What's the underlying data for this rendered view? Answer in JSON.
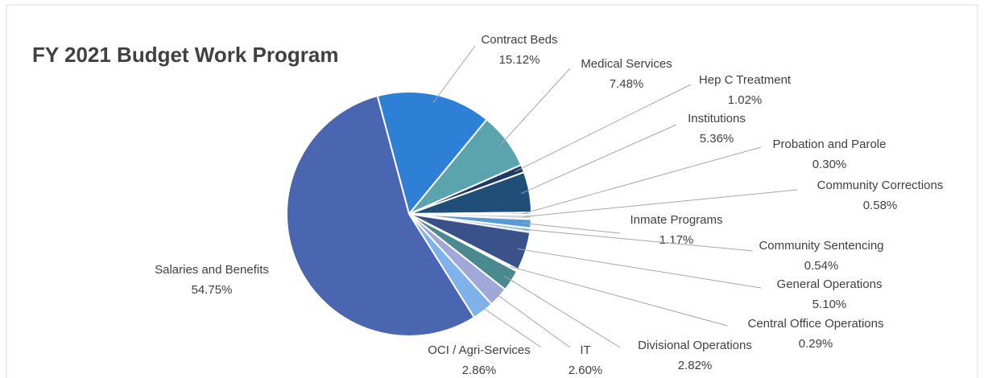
{
  "chart_data": {
    "type": "pie",
    "title": "FY 2021 Budget Work Program",
    "categories": [
      "Contract Beds",
      "Medical Services",
      "Hep C Treatment",
      "Institutions",
      "Probation and Parole",
      "Community Corrections",
      "Inmate Programs",
      "Community Sentencing",
      "General Operations",
      "Central Office Operations",
      "Divisional Operations",
      "IT",
      "OCI / Agri-Services",
      "Salaries and Benefits"
    ],
    "values": [
      15.12,
      7.48,
      1.02,
      5.36,
      0.3,
      0.58,
      1.17,
      0.54,
      5.1,
      0.29,
      2.82,
      2.6,
      2.86,
      54.75
    ],
    "value_labels": [
      "15.12%",
      "7.48%",
      "1.02%",
      "5.36%",
      "0.30%",
      "0.58%",
      "1.17%",
      "0.54%",
      "5.10%",
      "0.29%",
      "2.82%",
      "2.60%",
      "2.86%",
      "54.75%"
    ],
    "colors": [
      "#2e7fd6",
      "#5ba3ad",
      "#1f3864",
      "#1f4e79",
      "#a6a6a6",
      "#d9d9d9",
      "#5b9bd5",
      "#9dc3e6",
      "#3a5189",
      "#dbe4f0",
      "#4a8a8f",
      "#a0a8d8",
      "#7fb2e8",
      "#4a66b0"
    ]
  }
}
